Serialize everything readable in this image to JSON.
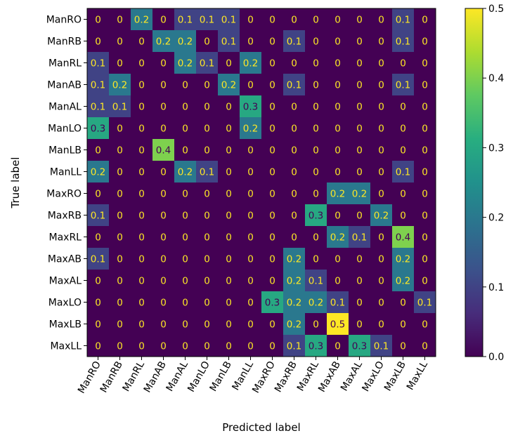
{
  "chart_data": {
    "type": "heatmap",
    "title": "",
    "xlabel": "Predicted label",
    "ylabel": "True label",
    "labels": [
      "ManRO",
      "ManRB",
      "ManRL",
      "ManAB",
      "ManAL",
      "ManLO",
      "ManLB",
      "ManLL",
      "MaxRO",
      "MaxRB",
      "MaxRL",
      "MaxAB",
      "MaxAL",
      "MaxLO",
      "MaxLB",
      "MaxLL"
    ],
    "matrix": [
      [
        0,
        0,
        0.2,
        0,
        0.1,
        0.1,
        0.1,
        0,
        0,
        0,
        0,
        0,
        0,
        0,
        0.1,
        0
      ],
      [
        0,
        0,
        0,
        0.2,
        0.2,
        0,
        0.1,
        0,
        0,
        0.1,
        0,
        0,
        0,
        0,
        0.1,
        0
      ],
      [
        0.1,
        0,
        0,
        0,
        0.2,
        0.1,
        0,
        0.2,
        0,
        0,
        0,
        0,
        0,
        0,
        0,
        0
      ],
      [
        0.1,
        0.2,
        0,
        0,
        0,
        0,
        0.2,
        0,
        0,
        0.1,
        0,
        0,
        0,
        0,
        0.1,
        0
      ],
      [
        0.1,
        0.1,
        0,
        0,
        0,
        0,
        0,
        0.3,
        0,
        0,
        0,
        0,
        0,
        0,
        0,
        0
      ],
      [
        0.3,
        0,
        0,
        0,
        0,
        0,
        0,
        0.2,
        0,
        0,
        0,
        0,
        0,
        0,
        0,
        0
      ],
      [
        0,
        0,
        0,
        0.4,
        0,
        0,
        0,
        0,
        0,
        0,
        0,
        0,
        0,
        0,
        0,
        0
      ],
      [
        0.2,
        0,
        0,
        0,
        0.2,
        0.1,
        0,
        0,
        0,
        0,
        0,
        0,
        0,
        0,
        0.1,
        0
      ],
      [
        0,
        0,
        0,
        0,
        0,
        0,
        0,
        0,
        0,
        0,
        0,
        0.2,
        0.2,
        0,
        0,
        0
      ],
      [
        0.1,
        0,
        0,
        0,
        0,
        0,
        0,
        0,
        0,
        0,
        0.3,
        0,
        0,
        0.2,
        0,
        0
      ],
      [
        0,
        0,
        0,
        0,
        0,
        0,
        0,
        0,
        0,
        0,
        0,
        0.2,
        0.1,
        0,
        0.4,
        0
      ],
      [
        0.1,
        0,
        0,
        0,
        0,
        0,
        0,
        0,
        0,
        0.2,
        0,
        0,
        0,
        0,
        0.2,
        0
      ],
      [
        0,
        0,
        0,
        0,
        0,
        0,
        0,
        0,
        0,
        0.2,
        0.1,
        0,
        0,
        0,
        0.2,
        0
      ],
      [
        0,
        0,
        0,
        0,
        0,
        0,
        0,
        0,
        0.3,
        0.2,
        0.2,
        0.1,
        0,
        0,
        0,
        0.1
      ],
      [
        0,
        0,
        0,
        0,
        0,
        0,
        0,
        0,
        0,
        0.2,
        0,
        0.5,
        0,
        0,
        0,
        0
      ],
      [
        0,
        0,
        0,
        0,
        0,
        0,
        0,
        0,
        0,
        0.1,
        0.3,
        0,
        0.3,
        0.1,
        0,
        0
      ]
    ],
    "colormap": "viridis",
    "vmin": 0,
    "vmax": 0.5,
    "colorbar_ticks": [
      "0.0",
      "0.1",
      "0.2",
      "0.3",
      "0.4",
      "0.5"
    ],
    "colorbar_tick_values": [
      0,
      0.1,
      0.2,
      0.3,
      0.4,
      0.5
    ]
  }
}
